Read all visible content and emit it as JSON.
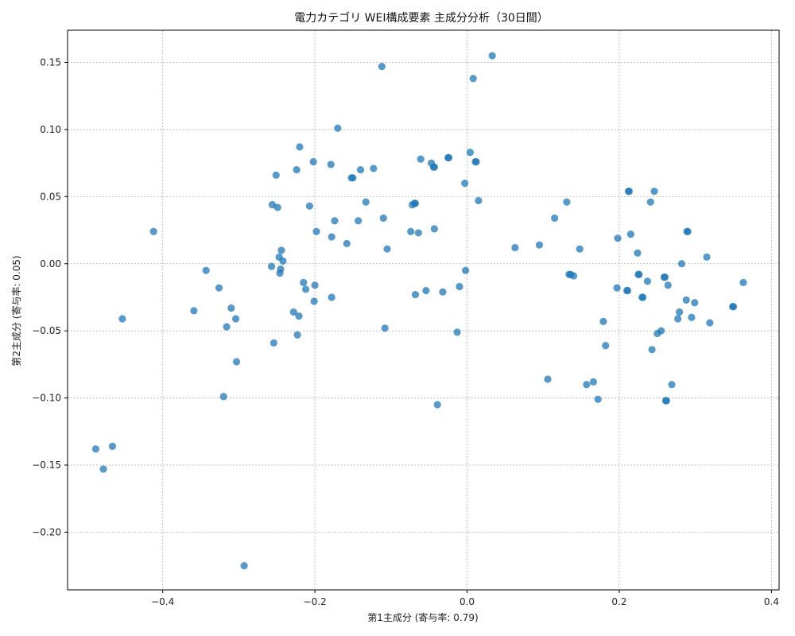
{
  "chart_data": {
    "type": "scatter",
    "title": "電力カテゴリ WEI構成要素 主成分分析（30日間）",
    "xlabel": "第1主成分 (寄与率: 0.79)",
    "ylabel": "第2主成分 (寄与率: 0.05)",
    "xlim": [
      -0.525,
      0.41
    ],
    "ylim": [
      -0.243,
      0.174
    ],
    "xticks": [
      -0.4,
      -0.2,
      0.0,
      0.2,
      0.4
    ],
    "xtick_labels": [
      "−0.4",
      "−0.2",
      "0.0",
      "0.2",
      "0.4"
    ],
    "yticks": [
      -0.2,
      -0.15,
      -0.1,
      -0.05,
      0.0,
      0.05,
      0.1,
      0.15
    ],
    "ytick_labels": [
      "−0.20",
      "−0.15",
      "−0.10",
      "−0.05",
      "0.00",
      "0.05",
      "0.10",
      "0.15"
    ],
    "grid": true,
    "point_color": "#1f77b4",
    "points": [
      [
        -0.488,
        -0.138
      ],
      [
        -0.478,
        -0.153
      ],
      [
        -0.466,
        -0.136
      ],
      [
        -0.453,
        -0.041
      ],
      [
        -0.412,
        0.024
      ],
      [
        -0.359,
        -0.035
      ],
      [
        -0.343,
        -0.005
      ],
      [
        -0.326,
        -0.018
      ],
      [
        -0.32,
        -0.099
      ],
      [
        -0.316,
        -0.047
      ],
      [
        -0.31,
        -0.033
      ],
      [
        -0.304,
        -0.041
      ],
      [
        -0.303,
        -0.073
      ],
      [
        -0.293,
        -0.225
      ],
      [
        -0.257,
        -0.002
      ],
      [
        -0.256,
        0.044
      ],
      [
        -0.254,
        -0.059
      ],
      [
        -0.251,
        0.066
      ],
      [
        -0.249,
        0.042
      ],
      [
        -0.247,
        0.005
      ],
      [
        -0.246,
        -0.007
      ],
      [
        -0.245,
        -0.004
      ],
      [
        -0.244,
        0.01
      ],
      [
        -0.242,
        0.002
      ],
      [
        -0.228,
        -0.036
      ],
      [
        -0.224,
        0.07
      ],
      [
        -0.223,
        -0.053
      ],
      [
        -0.221,
        -0.039
      ],
      [
        -0.22,
        0.087
      ],
      [
        -0.215,
        -0.014
      ],
      [
        -0.212,
        -0.019
      ],
      [
        -0.207,
        0.043
      ],
      [
        -0.202,
        0.076
      ],
      [
        -0.201,
        -0.028
      ],
      [
        -0.2,
        -0.016
      ],
      [
        -0.198,
        0.024
      ],
      [
        -0.179,
        0.074
      ],
      [
        -0.178,
        0.02
      ],
      [
        -0.178,
        -0.025
      ],
      [
        -0.174,
        0.032
      ],
      [
        -0.17,
        0.101
      ],
      [
        -0.158,
        0.015
      ],
      [
        -0.152,
        0.064
      ],
      [
        -0.15,
        0.064
      ],
      [
        -0.143,
        0.032
      ],
      [
        -0.14,
        0.07
      ],
      [
        -0.133,
        0.046
      ],
      [
        -0.123,
        0.071
      ],
      [
        -0.112,
        0.147
      ],
      [
        -0.11,
        0.034
      ],
      [
        -0.108,
        -0.048
      ],
      [
        -0.105,
        0.011
      ],
      [
        -0.074,
        0.024
      ],
      [
        -0.072,
        0.044
      ],
      [
        -0.069,
        0.045
      ],
      [
        -0.068,
        0.045
      ],
      [
        -0.068,
        -0.023
      ],
      [
        -0.064,
        0.023
      ],
      [
        -0.061,
        0.078
      ],
      [
        -0.054,
        -0.02
      ],
      [
        -0.047,
        0.075
      ],
      [
        -0.044,
        0.072
      ],
      [
        -0.043,
        0.072
      ],
      [
        -0.043,
        0.026
      ],
      [
        -0.039,
        -0.105
      ],
      [
        -0.032,
        -0.021
      ],
      [
        -0.025,
        0.079
      ],
      [
        -0.024,
        0.079
      ],
      [
        -0.013,
        -0.051
      ],
      [
        -0.01,
        -0.017
      ],
      [
        -0.003,
        0.06
      ],
      [
        -0.002,
        -0.005
      ],
      [
        0.004,
        0.083
      ],
      [
        0.008,
        0.138
      ],
      [
        0.011,
        0.076
      ],
      [
        0.012,
        0.076
      ],
      [
        0.015,
        0.047
      ],
      [
        0.033,
        0.155
      ],
      [
        0.063,
        0.012
      ],
      [
        0.095,
        0.014
      ],
      [
        0.106,
        -0.086
      ],
      [
        0.115,
        0.034
      ],
      [
        0.131,
        0.046
      ],
      [
        0.134,
        -0.008
      ],
      [
        0.136,
        -0.008
      ],
      [
        0.14,
        -0.009
      ],
      [
        0.148,
        0.011
      ],
      [
        0.157,
        -0.09
      ],
      [
        0.166,
        -0.088
      ],
      [
        0.172,
        -0.101
      ],
      [
        0.179,
        -0.043
      ],
      [
        0.182,
        -0.061
      ],
      [
        0.197,
        -0.018
      ],
      [
        0.198,
        0.019
      ],
      [
        0.21,
        -0.02
      ],
      [
        0.211,
        -0.02
      ],
      [
        0.212,
        0.054
      ],
      [
        0.213,
        0.054
      ],
      [
        0.215,
        0.022
      ],
      [
        0.224,
        0.008
      ],
      [
        0.225,
        -0.008
      ],
      [
        0.226,
        -0.008
      ],
      [
        0.23,
        -0.025
      ],
      [
        0.231,
        -0.025
      ],
      [
        0.237,
        -0.013
      ],
      [
        0.241,
        0.046
      ],
      [
        0.243,
        -0.064
      ],
      [
        0.246,
        0.054
      ],
      [
        0.25,
        -0.052
      ],
      [
        0.255,
        -0.05
      ],
      [
        0.259,
        -0.01
      ],
      [
        0.26,
        -0.01
      ],
      [
        0.261,
        -0.102
      ],
      [
        0.262,
        -0.102
      ],
      [
        0.264,
        -0.016
      ],
      [
        0.269,
        -0.09
      ],
      [
        0.277,
        -0.041
      ],
      [
        0.279,
        -0.036
      ],
      [
        0.282,
        0.0
      ],
      [
        0.288,
        -0.027
      ],
      [
        0.289,
        0.024
      ],
      [
        0.29,
        0.024
      ],
      [
        0.295,
        -0.04
      ],
      [
        0.299,
        -0.029
      ],
      [
        0.315,
        0.005
      ],
      [
        0.319,
        -0.044
      ],
      [
        0.349,
        -0.032
      ],
      [
        0.35,
        -0.032
      ],
      [
        0.363,
        -0.014
      ]
    ]
  }
}
